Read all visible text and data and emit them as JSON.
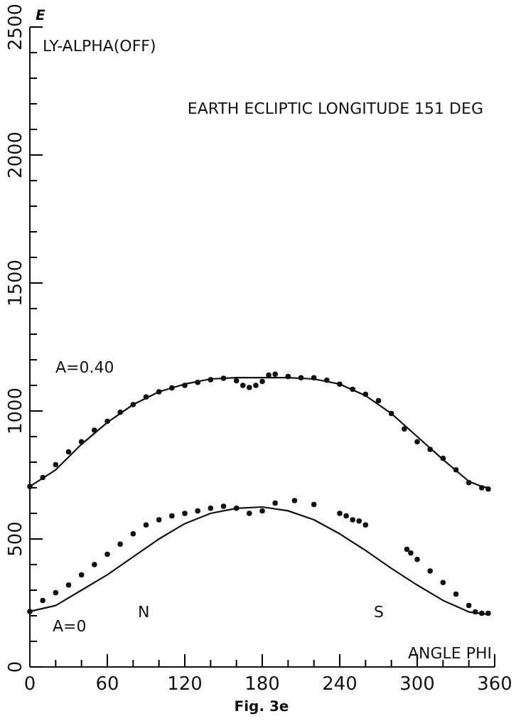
{
  "chart_data": {
    "type": "scatter",
    "title": "EARTH ECLIPTIC LONGITUDE 151 DEG",
    "subtitle": "LY-ALPHA(OFF)",
    "xlabel": "ANGLE PHI",
    "ylabel": "E",
    "annotations": [
      "A=0.40",
      "A=0",
      "N",
      "S",
      "Fig. 3e"
    ],
    "xlim": [
      0,
      360
    ],
    "ylim": [
      0,
      2500
    ],
    "xticks": [
      0,
      {
        "value": 20,
        "label": null
      },
      {
        "value": 40,
        "label": null
      },
      60,
      {
        "value": 80,
        "label": null
      },
      {
        "value": 100,
        "label": null
      },
      120,
      {
        "value": 140,
        "label": null
      },
      {
        "value": 160,
        "label": null
      },
      180,
      {
        "value": 200,
        "label": null
      },
      {
        "value": 220,
        "label": null
      },
      240,
      {
        "value": 260,
        "label": null
      },
      {
        "value": 280,
        "label": null
      },
      300,
      {
        "value": 320,
        "label": null
      },
      {
        "value": 340,
        "label": null
      },
      360
    ],
    "yticks": [
      0,
      {
        "value": 100,
        "label": null
      },
      {
        "value": 200,
        "label": null
      },
      {
        "value": 300,
        "label": null
      },
      {
        "value": 400,
        "label": null
      },
      500,
      {
        "value": 600,
        "label": null
      },
      {
        "value": 700,
        "label": null
      },
      {
        "value": 800,
        "label": null
      },
      {
        "value": 900,
        "label": null
      },
      1000,
      {
        "value": 1100,
        "label": null
      },
      {
        "value": 1200,
        "label": null
      },
      {
        "value": 1300,
        "label": null
      },
      {
        "value": 1400,
        "label": null
      },
      1500,
      {
        "value": 1600,
        "label": null
      },
      {
        "value": 1700,
        "label": null
      },
      {
        "value": 1800,
        "label": null
      },
      {
        "value": 1900,
        "label": null
      },
      2000,
      {
        "value": 2100,
        "label": null
      },
      {
        "value": 2200,
        "label": null
      },
      {
        "value": 2300,
        "label": null
      },
      {
        "value": 2400,
        "label": null
      },
      2500
    ],
    "grid": false,
    "marker": "circle",
    "series": [
      {
        "color": "#111111",
        "x": [
          0,
          10,
          20,
          30,
          40,
          50,
          60,
          70,
          80,
          90,
          100,
          110,
          120,
          130,
          140,
          150,
          160,
          165,
          170,
          175,
          180,
          185,
          190,
          200,
          210,
          220,
          230,
          240,
          250,
          260,
          270,
          280,
          290,
          300,
          310,
          320,
          330,
          340,
          350,
          355
        ],
        "values": [
          705,
          740,
          790,
          840,
          880,
          925,
          960,
          995,
          1025,
          1055,
          1075,
          1090,
          1100,
          1112,
          1122,
          1128,
          1118,
          1100,
          1092,
          1100,
          1115,
          1140,
          1144,
          1135,
          1130,
          1130,
          1120,
          1105,
          1085,
          1065,
          1040,
          990,
          930,
          880,
          850,
          815,
          770,
          720,
          700,
          695
        ]
      },
      {
        "type": "line",
        "color": "#111111",
        "marker": "none",
        "x": [
          0,
          20,
          40,
          60,
          80,
          100,
          120,
          140,
          160,
          180,
          200,
          220,
          240,
          260,
          280,
          300,
          320,
          340,
          350,
          355
        ],
        "values": [
          705,
          770,
          870,
          955,
          1025,
          1075,
          1105,
          1125,
          1130,
          1130,
          1130,
          1125,
          1105,
          1060,
          990,
          900,
          810,
          725,
          705,
          700
        ]
      },
      {
        "color": "#111111",
        "x": [
          0,
          10,
          20,
          30,
          40,
          50,
          60,
          70,
          80,
          90,
          100,
          110,
          120,
          130,
          140,
          150,
          160,
          170,
          180,
          190,
          205,
          220,
          240,
          245,
          250,
          255,
          260,
          292,
          295,
          300,
          310,
          320,
          330,
          340,
          345,
          350,
          355
        ],
        "values": [
          217,
          260,
          290,
          320,
          360,
          400,
          440,
          480,
          520,
          555,
          575,
          590,
          600,
          610,
          620,
          628,
          620,
          600,
          610,
          640,
          650,
          635,
          600,
          590,
          575,
          570,
          555,
          460,
          445,
          420,
          375,
          330,
          285,
          240,
          215,
          210,
          210
        ]
      },
      {
        "type": "line",
        "color": "#111111",
        "marker": "none",
        "x": [
          0,
          20,
          40,
          60,
          80,
          100,
          120,
          140,
          160,
          180,
          200,
          220,
          240,
          260,
          280,
          300,
          320,
          340,
          355
        ],
        "values": [
          217,
          240,
          300,
          360,
          430,
          500,
          560,
          600,
          620,
          625,
          610,
          575,
          520,
          455,
          385,
          320,
          260,
          215,
          205
        ]
      }
    ]
  }
}
